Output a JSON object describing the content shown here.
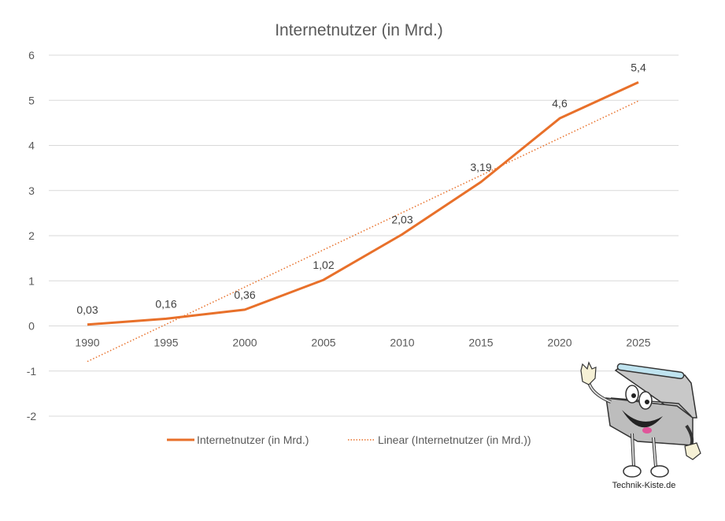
{
  "chart_data": {
    "type": "line",
    "title": "Internetnutzer (in Mrd.)",
    "xlabel": "",
    "ylabel": "",
    "categories": [
      "1990",
      "1995",
      "2000",
      "2005",
      "2010",
      "2015",
      "2020",
      "2025"
    ],
    "series": [
      {
        "name": "Internetnutzer (in Mrd.)",
        "values": [
          0.03,
          0.16,
          0.36,
          1.02,
          2.03,
          3.19,
          4.6,
          5.4
        ],
        "labels": [
          "0,03",
          "0,16",
          "0,36",
          "1,02",
          "2,03",
          "3,19",
          "4,6",
          "5,4"
        ],
        "color": "#E8702A",
        "style": "solid"
      }
    ],
    "trendline": {
      "name": "Linear (Internetnutzer (in Mrd.))",
      "type": "linear",
      "color": "#E8702A",
      "style": "dotted"
    },
    "ylim": [
      -2,
      6
    ],
    "yticks": [
      -2,
      -1,
      0,
      1,
      2,
      3,
      4,
      5,
      6
    ],
    "grid": true,
    "legend": "bottom"
  },
  "logo": {
    "text": "Technik-Kiste.de"
  }
}
